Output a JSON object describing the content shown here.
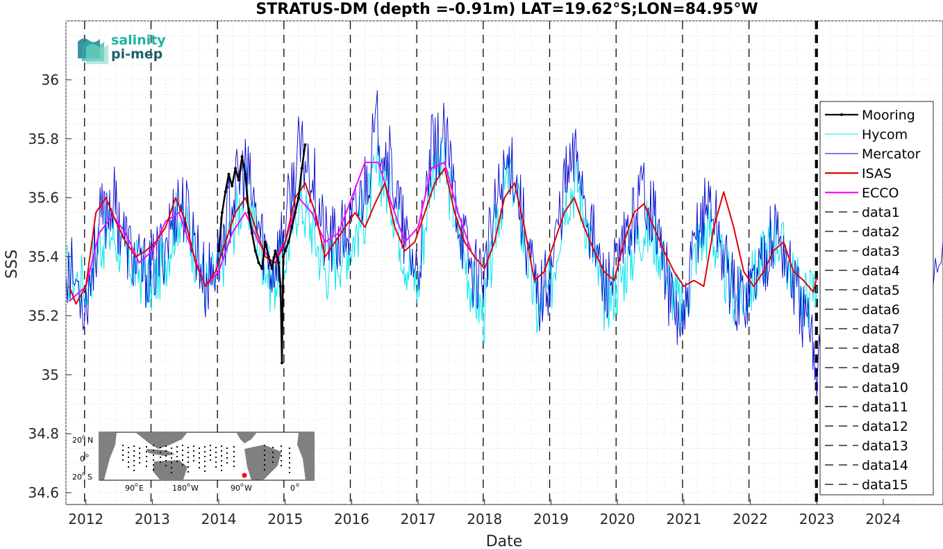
{
  "chart_data": {
    "type": "line",
    "title": "STRATUS-DM (depth =-0.91m) LAT=19.62°S;LON=84.95°W",
    "xlabel": "Date",
    "ylabel": "SSS",
    "xlim": [
      2011.7,
      2024.9
    ],
    "ylim": [
      34.56,
      36.2
    ],
    "xticks": [
      2012,
      2013,
      2014,
      2015,
      2016,
      2017,
      2018,
      2019,
      2020,
      2021,
      2022,
      2023,
      2024
    ],
    "yticks": [
      34.6,
      34.8,
      35,
      35.2,
      35.4,
      35.6,
      35.8,
      36
    ],
    "ytick_labels": [
      "34.6",
      "34.8",
      "35",
      "35.2",
      "35.4",
      "35.6",
      "35.8",
      "36"
    ],
    "grid": true,
    "legend_position": "right",
    "series": [
      {
        "name": "Mooring",
        "color": "#000000",
        "style": "solid-dots",
        "width": 2.5,
        "x": [
          2014.0,
          2014.05,
          2014.1,
          2014.15,
          2014.2,
          2014.25,
          2014.3,
          2014.35,
          2014.4,
          2014.45,
          2014.5,
          2014.55,
          2014.6,
          2014.65,
          2014.7,
          2014.75,
          2014.8,
          2014.85,
          2014.9,
          2014.93,
          2014.95,
          2014.97,
          2015.0,
          2015.05,
          2015.1,
          2015.15,
          2015.2,
          2015.25,
          2015.3
        ],
        "y": [
          35.42,
          35.55,
          35.62,
          35.68,
          35.64,
          35.7,
          35.66,
          35.74,
          35.68,
          35.55,
          35.48,
          35.42,
          35.38,
          35.36,
          35.45,
          35.4,
          35.36,
          35.42,
          35.38,
          35.3,
          35.04,
          35.4,
          35.42,
          35.45,
          35.5,
          35.55,
          35.6,
          35.7,
          35.78
        ]
      },
      {
        "name": "Hycom",
        "color": "#00e5ee",
        "style": "noisy",
        "width": 1,
        "x": [
          2011.7,
          2012.0,
          2012.2,
          2012.4,
          2012.6,
          2012.8,
          2013.0,
          2013.2,
          2013.4,
          2013.6,
          2013.8,
          2014.0,
          2014.2,
          2014.4,
          2014.6,
          2014.8,
          2015.0,
          2015.2,
          2015.4,
          2015.6,
          2015.8,
          2016.0,
          2016.2,
          2016.4,
          2016.6,
          2016.8,
          2017.0,
          2017.2,
          2017.4,
          2017.6,
          2017.8,
          2018.0,
          2018.2,
          2018.4,
          2018.6,
          2018.8,
          2019.0,
          2019.2,
          2019.4,
          2019.6,
          2019.8,
          2020.0,
          2020.2,
          2020.4,
          2020.6,
          2020.8,
          2021.0,
          2021.2,
          2021.4,
          2021.6,
          2021.8,
          2022.0,
          2022.2,
          2022.4,
          2022.6,
          2022.8,
          2023.0
        ],
        "y": [
          35.35,
          35.3,
          35.45,
          35.48,
          35.4,
          35.35,
          35.3,
          35.4,
          35.55,
          35.45,
          35.3,
          35.35,
          35.5,
          35.62,
          35.45,
          35.3,
          35.4,
          35.6,
          35.5,
          35.35,
          35.4,
          35.45,
          35.55,
          35.7,
          35.6,
          35.4,
          35.3,
          35.7,
          35.7,
          35.5,
          35.3,
          35.2,
          35.55,
          35.7,
          35.45,
          35.2,
          35.3,
          35.6,
          35.65,
          35.45,
          35.25,
          35.3,
          35.4,
          35.5,
          35.45,
          35.3,
          35.2,
          35.45,
          35.5,
          35.35,
          35.25,
          35.3,
          35.4,
          35.48,
          35.35,
          35.25,
          35.3
        ]
      },
      {
        "name": "Mercator",
        "color": "#0000cd",
        "style": "noisy",
        "width": 0.9,
        "x": [
          2011.7,
          2012.0,
          2012.2,
          2012.4,
          2012.6,
          2012.8,
          2013.0,
          2013.2,
          2013.4,
          2013.6,
          2013.8,
          2014.0,
          2014.2,
          2014.4,
          2014.6,
          2014.8,
          2015.0,
          2015.2,
          2015.4,
          2015.6,
          2015.8,
          2016.0,
          2016.2,
          2016.4,
          2016.6,
          2016.8,
          2017.0,
          2017.2,
          2017.4,
          2017.6,
          2017.8,
          2018.0,
          2018.2,
          2018.4,
          2018.6,
          2018.8,
          2019.0,
          2019.2,
          2019.4,
          2019.6,
          2019.8,
          2020.0,
          2020.2,
          2020.4,
          2020.6,
          2020.8,
          2021.0,
          2021.2,
          2021.4,
          2021.6,
          2021.8,
          2022.0,
          2022.2,
          2022.4,
          2022.6,
          2022.8,
          2023.0,
          2023.5,
          2024.0,
          2024.5,
          2024.9
        ],
        "y": [
          35.38,
          35.25,
          35.5,
          35.6,
          35.45,
          35.35,
          35.35,
          35.45,
          35.6,
          35.5,
          35.3,
          35.4,
          35.6,
          35.7,
          35.5,
          35.35,
          35.5,
          35.75,
          35.7,
          35.45,
          35.45,
          35.5,
          35.65,
          35.85,
          35.7,
          35.45,
          35.35,
          35.75,
          35.8,
          35.55,
          35.35,
          35.35,
          35.6,
          35.75,
          35.5,
          35.25,
          35.35,
          35.65,
          35.75,
          35.5,
          35.3,
          35.35,
          35.5,
          35.65,
          35.5,
          35.25,
          35.15,
          35.5,
          35.6,
          35.4,
          35.25,
          35.3,
          35.4,
          35.5,
          35.35,
          35.2,
          35.05,
          35.3,
          35.45,
          35.3,
          35.45
        ]
      },
      {
        "name": "ISAS",
        "color": "#e00000",
        "style": "solid",
        "width": 2,
        "x": [
          2011.75,
          2011.85,
          2012.0,
          2012.15,
          2012.3,
          2012.45,
          2012.6,
          2012.75,
          2012.9,
          2013.05,
          2013.2,
          2013.35,
          2013.5,
          2013.65,
          2013.8,
          2013.95,
          2014.1,
          2014.25,
          2014.4,
          2014.55,
          2014.7,
          2014.85,
          2015.0,
          2015.15,
          2015.3,
          2015.45,
          2015.6,
          2015.75,
          2015.9,
          2016.05,
          2016.2,
          2016.35,
          2016.5,
          2016.65,
          2016.8,
          2016.95,
          2017.1,
          2017.25,
          2017.4,
          2017.55,
          2017.7,
          2017.85,
          2018.0,
          2018.15,
          2018.3,
          2018.45,
          2018.6,
          2018.75,
          2018.9,
          2019.05,
          2019.2,
          2019.35,
          2019.5,
          2019.65,
          2019.8,
          2019.95,
          2020.1,
          2020.25,
          2020.4,
          2020.55,
          2020.7,
          2020.85,
          2021.0,
          2021.15,
          2021.3,
          2021.45,
          2021.6,
          2021.75,
          2021.9,
          2022.05,
          2022.2,
          2022.35,
          2022.5,
          2022.65,
          2022.8,
          2022.95,
          2023.0
        ],
        "y": [
          35.3,
          35.24,
          35.3,
          35.55,
          35.6,
          35.52,
          35.45,
          35.4,
          35.42,
          35.45,
          35.5,
          35.6,
          35.52,
          35.38,
          35.3,
          35.35,
          35.45,
          35.55,
          35.6,
          35.5,
          35.4,
          35.38,
          35.45,
          35.6,
          35.65,
          35.55,
          35.4,
          35.45,
          35.5,
          35.55,
          35.5,
          35.58,
          35.65,
          35.5,
          35.42,
          35.45,
          35.55,
          35.65,
          35.7,
          35.55,
          35.45,
          35.4,
          35.36,
          35.45,
          35.6,
          35.65,
          35.5,
          35.32,
          35.35,
          35.45,
          35.55,
          35.6,
          35.5,
          35.42,
          35.35,
          35.32,
          35.45,
          35.55,
          35.58,
          35.5,
          35.42,
          35.35,
          35.3,
          35.32,
          35.3,
          35.5,
          35.62,
          35.5,
          35.35,
          35.3,
          35.35,
          35.42,
          35.45,
          35.35,
          35.32,
          35.28,
          35.33
        ]
      },
      {
        "name": "ECCO",
        "color": "#ff00ff",
        "style": "solid",
        "width": 2,
        "x": [
          2011.75,
          2012.0,
          2012.2,
          2012.4,
          2012.6,
          2012.8,
          2013.0,
          2013.2,
          2013.4,
          2013.6,
          2013.8,
          2014.0,
          2014.2,
          2014.4,
          2014.6,
          2014.8,
          2015.0,
          2015.2,
          2015.4,
          2015.6,
          2015.8,
          2016.0,
          2016.2,
          2016.4,
          2016.6,
          2016.8,
          2017.0,
          2017.2,
          2017.4,
          2017.6,
          2017.8
        ],
        "y": [
          35.25,
          35.3,
          35.48,
          35.54,
          35.48,
          35.38,
          35.42,
          35.52,
          35.55,
          35.42,
          35.3,
          35.35,
          35.48,
          35.55,
          35.45,
          35.38,
          35.45,
          35.6,
          35.55,
          35.45,
          35.48,
          35.6,
          35.72,
          35.72,
          35.58,
          35.45,
          35.5,
          35.7,
          35.72,
          35.55,
          35.42
        ]
      }
    ],
    "vertical_markers": [
      {
        "name": "data1",
        "x": 2011.98
      },
      {
        "name": "data2",
        "x": 2012.98
      },
      {
        "name": "data3",
        "x": 2013.98
      },
      {
        "name": "data4",
        "x": 2014.98
      },
      {
        "name": "data5",
        "x": 2015.98
      },
      {
        "name": "data6",
        "x": 2016.98
      },
      {
        "name": "data7",
        "x": 2017.98
      },
      {
        "name": "data8",
        "x": 2018.98
      },
      {
        "name": "data9",
        "x": 2019.98
      },
      {
        "name": "data10",
        "x": 2020.98
      },
      {
        "name": "data11",
        "x": 2021.98
      },
      {
        "name": "data12",
        "x": 2022.98
      },
      {
        "name": "data13",
        "x": 2022.99
      },
      {
        "name": "data14",
        "x": 2023.0
      },
      {
        "name": "data15",
        "x": 2023.01
      }
    ]
  },
  "logo": {
    "line1": "salinity",
    "line2": "pi-mep",
    "color1": "#1ab4a0",
    "color2": "#1a5f6e"
  },
  "inset_map": {
    "lat_labels": [
      "20",
      "N",
      "0",
      "20",
      "S"
    ],
    "lon_labels": [
      "90",
      "E",
      "180",
      "W",
      "90",
      "W",
      "0"
    ],
    "ocean_color": "#ffffff",
    "land_color": "#808080",
    "marker_color": "#ff0000"
  }
}
